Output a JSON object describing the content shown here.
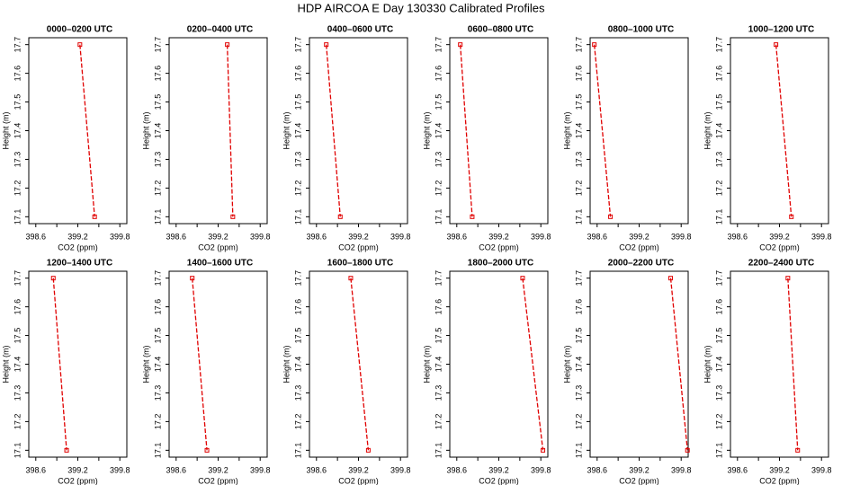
{
  "title": "HDP AIRCOA E  Day 130330  Calibrated Profiles",
  "chart_data": [
    {
      "type": "line",
      "title": "0000–0200 UTC",
      "xlabel": "CO2 (ppm)",
      "ylabel": "Height (m)",
      "x": [
        399.23,
        399.44
      ],
      "values": [
        17.7,
        17.1
      ],
      "color": "#e00000",
      "xlim": [
        398.5,
        399.9
      ],
      "xticks": [
        398.6,
        399.2,
        399.8
      ],
      "xminorticks": [
        398.9,
        399.5
      ],
      "ylim": [
        17.076,
        17.724
      ],
      "yticks": [
        17.1,
        17.2,
        17.3,
        17.4,
        17.5,
        17.6,
        17.7
      ]
    },
    {
      "type": "line",
      "title": "0200–0400 UTC",
      "xlabel": "CO2 (ppm)",
      "ylabel": "Height (m)",
      "x": [
        399.33,
        399.41
      ],
      "values": [
        17.7,
        17.1
      ],
      "color": "#e00000",
      "xlim": [
        398.5,
        399.9
      ],
      "xticks": [
        398.6,
        399.2,
        399.8
      ],
      "xminorticks": [
        398.9,
        399.5
      ],
      "ylim": [
        17.076,
        17.724
      ],
      "yticks": [
        17.1,
        17.2,
        17.3,
        17.4,
        17.5,
        17.6,
        17.7
      ]
    },
    {
      "type": "line",
      "title": "0400–0600 UTC",
      "xlabel": "CO2 (ppm)",
      "ylabel": "Height (m)",
      "x": [
        398.74,
        398.94
      ],
      "values": [
        17.7,
        17.1
      ],
      "color": "#e00000",
      "xlim": [
        398.5,
        399.9
      ],
      "xticks": [
        398.6,
        399.2,
        399.8
      ],
      "xminorticks": [
        398.9,
        399.5
      ],
      "ylim": [
        17.076,
        17.724
      ],
      "yticks": [
        17.1,
        17.2,
        17.3,
        17.4,
        17.5,
        17.6,
        17.7
      ]
    },
    {
      "type": "line",
      "title": "0600–0800 UTC",
      "xlabel": "CO2 (ppm)",
      "ylabel": "Height (m)",
      "x": [
        398.65,
        398.82
      ],
      "values": [
        17.7,
        17.1
      ],
      "color": "#e00000",
      "xlim": [
        398.5,
        399.9
      ],
      "xticks": [
        398.6,
        399.2,
        399.8
      ],
      "xminorticks": [
        398.9,
        399.5
      ],
      "ylim": [
        17.076,
        17.724
      ],
      "yticks": [
        17.1,
        17.2,
        17.3,
        17.4,
        17.5,
        17.6,
        17.7
      ]
    },
    {
      "type": "line",
      "title": "0800–1000 UTC",
      "xlabel": "CO2 (ppm)",
      "ylabel": "Height (m)",
      "x": [
        398.56,
        398.79
      ],
      "values": [
        17.7,
        17.1
      ],
      "color": "#e00000",
      "xlim": [
        398.5,
        399.9
      ],
      "xticks": [
        398.6,
        399.2,
        399.8
      ],
      "xminorticks": [
        398.9,
        399.5
      ],
      "ylim": [
        17.076,
        17.724
      ],
      "yticks": [
        17.1,
        17.2,
        17.3,
        17.4,
        17.5,
        17.6,
        17.7
      ]
    },
    {
      "type": "line",
      "title": "1000–1200 UTC",
      "xlabel": "CO2 (ppm)",
      "ylabel": "Height (m)",
      "x": [
        399.15,
        399.37
      ],
      "values": [
        17.7,
        17.1
      ],
      "color": "#e00000",
      "xlim": [
        398.5,
        399.9
      ],
      "xticks": [
        398.6,
        399.2,
        399.8
      ],
      "xminorticks": [
        398.9,
        399.5
      ],
      "ylim": [
        17.076,
        17.724
      ],
      "yticks": [
        17.1,
        17.2,
        17.3,
        17.4,
        17.5,
        17.6,
        17.7
      ]
    },
    {
      "type": "line",
      "title": "1200–1400 UTC",
      "xlabel": "CO2 (ppm)",
      "ylabel": "Height (m)",
      "x": [
        398.85,
        399.04
      ],
      "values": [
        17.7,
        17.1
      ],
      "color": "#e00000",
      "xlim": [
        398.5,
        399.9
      ],
      "xticks": [
        398.6,
        399.2,
        399.8
      ],
      "xminorticks": [
        398.9,
        399.5
      ],
      "ylim": [
        17.076,
        17.724
      ],
      "yticks": [
        17.1,
        17.2,
        17.3,
        17.4,
        17.5,
        17.6,
        17.7
      ]
    },
    {
      "type": "line",
      "title": "1400–1600 UTC",
      "xlabel": "CO2 (ppm)",
      "ylabel": "Height (m)",
      "x": [
        398.83,
        399.04
      ],
      "values": [
        17.7,
        17.1
      ],
      "color": "#e00000",
      "xlim": [
        398.5,
        399.9
      ],
      "xticks": [
        398.6,
        399.2,
        399.8
      ],
      "xminorticks": [
        398.9,
        399.5
      ],
      "ylim": [
        17.076,
        17.724
      ],
      "yticks": [
        17.1,
        17.2,
        17.3,
        17.4,
        17.5,
        17.6,
        17.7
      ]
    },
    {
      "type": "line",
      "title": "1600–1800 UTC",
      "xlabel": "CO2 (ppm)",
      "ylabel": "Height (m)",
      "x": [
        399.09,
        399.34
      ],
      "values": [
        17.7,
        17.1
      ],
      "color": "#e00000",
      "xlim": [
        398.5,
        399.9
      ],
      "xticks": [
        398.6,
        399.2,
        399.8
      ],
      "xminorticks": [
        398.9,
        399.5
      ],
      "ylim": [
        17.076,
        17.724
      ],
      "yticks": [
        17.1,
        17.2,
        17.3,
        17.4,
        17.5,
        17.6,
        17.7
      ]
    },
    {
      "type": "line",
      "title": "1800–2000 UTC",
      "xlabel": "CO2 (ppm)",
      "ylabel": "Height (m)",
      "x": [
        399.54,
        399.83
      ],
      "values": [
        17.7,
        17.1
      ],
      "color": "#e00000",
      "xlim": [
        398.5,
        399.9
      ],
      "xticks": [
        398.6,
        399.2,
        399.8
      ],
      "xminorticks": [
        398.9,
        399.5
      ],
      "ylim": [
        17.076,
        17.724
      ],
      "yticks": [
        17.1,
        17.2,
        17.3,
        17.4,
        17.5,
        17.6,
        17.7
      ]
    },
    {
      "type": "line",
      "title": "2000–2200 UTC",
      "xlabel": "CO2 (ppm)",
      "ylabel": "Height (m)",
      "x": [
        399.65,
        399.89
      ],
      "values": [
        17.7,
        17.1
      ],
      "color": "#e00000",
      "xlim": [
        398.5,
        399.9
      ],
      "xticks": [
        398.6,
        399.2,
        399.8
      ],
      "xminorticks": [
        398.9,
        399.5
      ],
      "ylim": [
        17.076,
        17.724
      ],
      "yticks": [
        17.1,
        17.2,
        17.3,
        17.4,
        17.5,
        17.6,
        17.7
      ]
    },
    {
      "type": "line",
      "title": "2200–2400 UTC",
      "xlabel": "CO2 (ppm)",
      "ylabel": "Height (m)",
      "x": [
        399.32,
        399.46
      ],
      "values": [
        17.7,
        17.1
      ],
      "color": "#e00000",
      "xlim": [
        398.5,
        399.9
      ],
      "xticks": [
        398.6,
        399.2,
        399.8
      ],
      "xminorticks": [
        398.9,
        399.5
      ],
      "ylim": [
        17.076,
        17.724
      ],
      "yticks": [
        17.1,
        17.2,
        17.3,
        17.4,
        17.5,
        17.6,
        17.7
      ]
    }
  ]
}
